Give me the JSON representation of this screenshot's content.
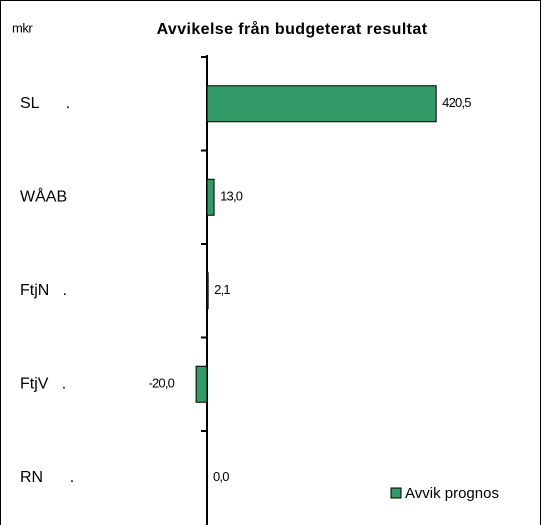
{
  "chart_data": {
    "type": "bar",
    "orientation": "horizontal",
    "title": "Avvikelse från budgeterat resultat",
    "unit_label": "mkr",
    "categories": [
      "SL      .",
      "WÅAB",
      "FtjN   .",
      "FtjV   .",
      "RN      ."
    ],
    "series": [
      {
        "name": "Avvik prognos",
        "color": "#339966",
        "values": [
          420.5,
          13.0,
          2.1,
          -20.0,
          0.0
        ],
        "value_labels": [
          "420,5",
          "13,0",
          "2,1",
          "-20,0",
          "0,0"
        ]
      }
    ],
    "legend": "bottom-right"
  }
}
